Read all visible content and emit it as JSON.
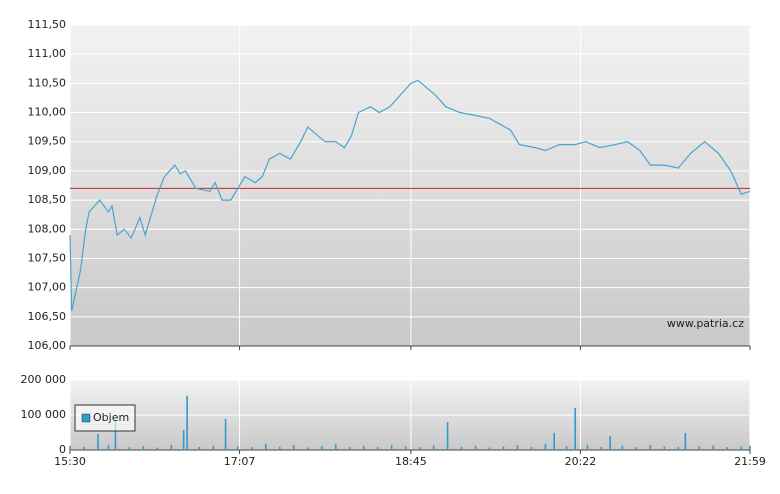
{
  "chart_data": [
    {
      "type": "line",
      "x": [
        "15:30",
        "15:31",
        "15:36",
        "15:39",
        "15:41",
        "15:47",
        "15:52",
        "15:54",
        "15:57",
        "16:01",
        "16:05",
        "16:10",
        "16:13",
        "16:16",
        "16:20",
        "16:24",
        "16:30",
        "16:33",
        "16:36",
        "16:42",
        "16:50",
        "16:53",
        "16:57",
        "17:02",
        "17:06",
        "17:10",
        "17:16",
        "17:20",
        "17:24",
        "17:30",
        "17:36",
        "17:42",
        "17:46",
        "17:52",
        "17:56",
        "18:02",
        "18:07",
        "18:11",
        "18:15",
        "18:22",
        "18:27",
        "18:33",
        "18:39",
        "18:45",
        "18:49",
        "18:55",
        "18:59",
        "19:05",
        "19:13",
        "19:22",
        "19:30",
        "19:36",
        "19:42",
        "19:47",
        "19:56",
        "20:02",
        "20:10",
        "20:19",
        "20:25",
        "20:33",
        "20:42",
        "20:49",
        "20:56",
        "21:02",
        "21:10",
        "21:18",
        "21:25",
        "21:33",
        "21:41",
        "21:48",
        "21:54",
        "21:59"
      ],
      "values": [
        107.9,
        106.6,
        107.3,
        108.0,
        108.3,
        108.5,
        108.3,
        108.4,
        107.9,
        108.0,
        107.85,
        108.2,
        107.9,
        108.2,
        108.6,
        108.9,
        109.1,
        108.95,
        109.0,
        108.7,
        108.65,
        108.8,
        108.5,
        108.5,
        108.7,
        108.9,
        108.8,
        108.9,
        109.2,
        109.3,
        109.2,
        109.5,
        109.75,
        109.6,
        109.5,
        109.5,
        109.4,
        109.6,
        110.0,
        110.1,
        110.0,
        110.1,
        110.3,
        110.5,
        110.55,
        110.4,
        110.3,
        110.1,
        110.0,
        109.95,
        109.9,
        109.8,
        109.7,
        109.45,
        109.4,
        109.35,
        109.45,
        109.45,
        109.5,
        109.4,
        109.45,
        109.5,
        109.35,
        109.1,
        109.1,
        109.05,
        109.3,
        109.5,
        109.3,
        109.0,
        108.6,
        108.65
      ],
      "color": "#4aa3d1",
      "xlim": [
        "15:30",
        "21:59"
      ],
      "xticks": [
        "15:30",
        "17:07",
        "18:45",
        "20:22",
        "21:59"
      ],
      "ylim": [
        106,
        111.5
      ],
      "yticks": [
        {
          "value": 106,
          "label": "106,00"
        },
        {
          "value": 106.5,
          "label": "106,50"
        },
        {
          "value": 107,
          "label": "107,00"
        },
        {
          "value": 107.5,
          "label": "107,50"
        },
        {
          "value": 108,
          "label": "108,00"
        },
        {
          "value": 108.5,
          "label": "108,50"
        },
        {
          "value": 109,
          "label": "109,00"
        },
        {
          "value": 109.5,
          "label": "109,50"
        },
        {
          "value": 110,
          "label": "110,00"
        },
        {
          "value": 110.5,
          "label": "110,50"
        },
        {
          "value": 111,
          "label": "111,00"
        },
        {
          "value": 111.5,
          "label": "111,50"
        }
      ],
      "reference_line": 108.7,
      "reference_color": "#cc2222",
      "grid": true,
      "annotation": "www.patria.cz"
    },
    {
      "type": "bar",
      "x": [
        "15:30",
        "15:38",
        "15:46",
        "15:52",
        "15:56",
        "16:04",
        "16:12",
        "16:20",
        "16:28",
        "16:35",
        "16:37",
        "16:44",
        "16:52",
        "16:59",
        "17:06",
        "17:14",
        "17:22",
        "17:30",
        "17:38",
        "17:46",
        "17:54",
        "18:02",
        "18:10",
        "18:18",
        "18:26",
        "18:34",
        "18:42",
        "18:50",
        "18:58",
        "19:06",
        "19:14",
        "19:22",
        "19:30",
        "19:38",
        "19:46",
        "19:54",
        "20:02",
        "20:07",
        "20:14",
        "20:19",
        "20:26",
        "20:34",
        "20:39",
        "20:46",
        "20:54",
        "21:02",
        "21:10",
        "21:18",
        "21:22",
        "21:30",
        "21:38",
        "21:46",
        "21:54",
        "21:59"
      ],
      "series": [
        {
          "name": "Objem",
          "color": "#3399cc",
          "values": [
            12000,
            9000,
            46000,
            15000,
            86000,
            8000,
            11000,
            7000,
            14000,
            57000,
            155000,
            9000,
            12000,
            89000,
            10000,
            8000,
            18000,
            9000,
            14000,
            7000,
            11000,
            16000,
            8000,
            12000,
            9000,
            15000,
            10000,
            8000,
            13000,
            80000,
            9000,
            12000,
            7000,
            10000,
            14000,
            9000,
            18000,
            49000,
            11000,
            120000,
            15000,
            9000,
            40000,
            12000,
            8000,
            14000,
            10000,
            9000,
            49000,
            11000,
            13000,
            8000,
            10000,
            12000
          ]
        }
      ],
      "xlim": [
        "15:30",
        "21:59"
      ],
      "xticks": [
        "15:30",
        "17:07",
        "18:45",
        "20:22",
        "21:59"
      ],
      "ylim": [
        0,
        200000
      ],
      "yticks": [
        0,
        {
          "value": 100000,
          "label": "100 000"
        },
        {
          "value": 200000,
          "label": "200 000"
        }
      ],
      "grid": true,
      "legend": "left"
    }
  ]
}
